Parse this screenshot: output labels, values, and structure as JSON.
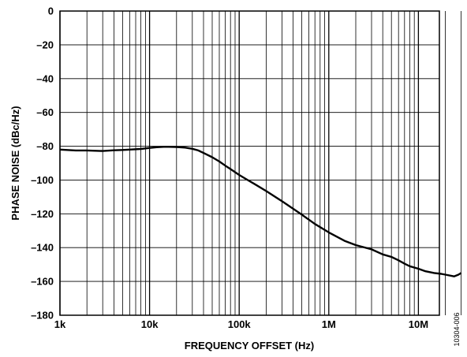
{
  "chart_data": {
    "type": "line",
    "title": "",
    "xlabel": "FREQUENCY OFFSET (Hz)",
    "ylabel": "PHASE NOISE (dBc/Hz)",
    "x_scale": "log",
    "xlim": [
      1000,
      30000000
    ],
    "ylim": [
      -180,
      0
    ],
    "grid": true,
    "x_ticks": [
      {
        "value": 1000,
        "label": "1k"
      },
      {
        "value": 10000,
        "label": "10k"
      },
      {
        "value": 100000,
        "label": "100k"
      },
      {
        "value": 1000000,
        "label": "1M"
      },
      {
        "value": 10000000,
        "label": "10M"
      }
    ],
    "y_ticks": [
      {
        "value": 0,
        "label": "0"
      },
      {
        "value": -20,
        "label": "–20"
      },
      {
        "value": -40,
        "label": "–40"
      },
      {
        "value": -60,
        "label": "–60"
      },
      {
        "value": -80,
        "label": "–80"
      },
      {
        "value": -100,
        "label": "–100"
      },
      {
        "value": -120,
        "label": "–120"
      },
      {
        "value": -140,
        "label": "–140"
      },
      {
        "value": -160,
        "label": "–160"
      },
      {
        "value": -180,
        "label": "–180"
      }
    ],
    "series": [
      {
        "color": "#000000",
        "x": [
          1000,
          1500,
          2000,
          3000,
          4000,
          5000,
          6000,
          8000,
          10000,
          12000,
          15000,
          18000,
          20000,
          25000,
          30000,
          35000,
          40000,
          50000,
          60000,
          70000,
          80000,
          100000,
          120000,
          150000,
          200000,
          300000,
          400000,
          500000,
          700000,
          1000000,
          1500000,
          2000000,
          3000000,
          4000000,
          5000000,
          6000000,
          7000000,
          8000000,
          10000000,
          12000000,
          15000000,
          18000000,
          20000000,
          25000000,
          28000000,
          30000000
        ],
        "y": [
          -82.0,
          -82.5,
          -82.5,
          -82.8,
          -82.4,
          -82.2,
          -82.0,
          -81.6,
          -81.0,
          -80.6,
          -80.3,
          -80.4,
          -80.5,
          -80.8,
          -81.5,
          -82.5,
          -84.0,
          -86.5,
          -89.0,
          -91.5,
          -93.5,
          -97.0,
          -99.5,
          -102.5,
          -106.5,
          -112.5,
          -117.0,
          -120.5,
          -126.0,
          -131.0,
          -136.0,
          -138.5,
          -141.0,
          -144.0,
          -145.5,
          -147.5,
          -149.5,
          -151.0,
          -152.5,
          -154.0,
          -155.0,
          -155.5,
          -156.0,
          -157.0,
          -156.0,
          -155.0
        ]
      }
    ],
    "figure_id": "10304-006"
  }
}
